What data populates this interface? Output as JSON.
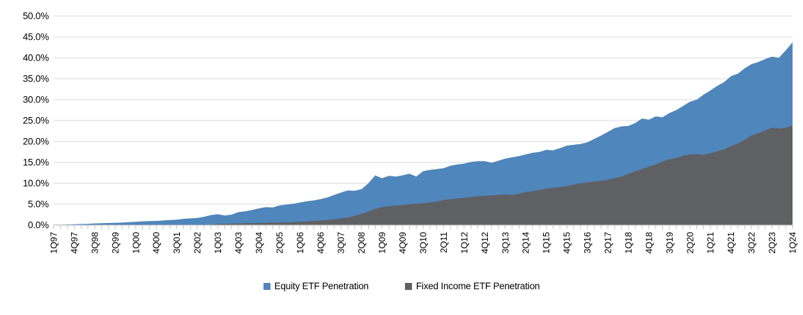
{
  "chart_data": {
    "type": "area",
    "overlay": true,
    "title": "",
    "xlabel": "",
    "ylabel": "",
    "ylim": [
      0,
      50
    ],
    "ytick_step": 5,
    "y_tick_labels": [
      "0.0%",
      "5.0%",
      "10.0%",
      "15.0%",
      "20.0%",
      "25.0%",
      "30.0%",
      "35.0%",
      "40.0%",
      "45.0%",
      "50.0%"
    ],
    "grid": "horizontal",
    "grid_color": "#D9D9D9",
    "axis_color": "#BFBFBF",
    "legend_position": "bottom-center",
    "x_tick_every": 3,
    "x_tick_labels": [
      "1Q97",
      "4Q97",
      "3Q98",
      "2Q99",
      "1Q00",
      "4Q00",
      "3Q01",
      "2Q02",
      "1Q03",
      "4Q03",
      "3Q04",
      "2Q05",
      "1Q06",
      "4Q06",
      "3Q07",
      "2Q08",
      "1Q09",
      "4Q09",
      "3Q10",
      "2Q11",
      "1Q12",
      "4Q12",
      "3Q13",
      "2Q14",
      "1Q15",
      "4Q15",
      "3Q16",
      "2Q17",
      "1Q18",
      "4Q18",
      "3Q19",
      "2Q20",
      "1Q21",
      "4Q21",
      "3Q22",
      "2Q23",
      "1Q24"
    ],
    "x_quarters": [
      "1Q97",
      "2Q97",
      "3Q97",
      "4Q97",
      "1Q98",
      "2Q98",
      "3Q98",
      "4Q98",
      "1Q99",
      "2Q99",
      "3Q99",
      "4Q99",
      "1Q00",
      "2Q00",
      "3Q00",
      "4Q00",
      "1Q01",
      "2Q01",
      "3Q01",
      "4Q01",
      "1Q02",
      "2Q02",
      "3Q02",
      "4Q02",
      "1Q03",
      "2Q03",
      "3Q03",
      "4Q03",
      "1Q04",
      "2Q04",
      "3Q04",
      "4Q04",
      "1Q05",
      "2Q05",
      "3Q05",
      "4Q05",
      "1Q06",
      "2Q06",
      "3Q06",
      "4Q06",
      "1Q07",
      "2Q07",
      "3Q07",
      "4Q07",
      "1Q08",
      "2Q08",
      "3Q08",
      "4Q08",
      "1Q09",
      "2Q09",
      "3Q09",
      "4Q09",
      "1Q10",
      "2Q10",
      "3Q10",
      "4Q10",
      "1Q11",
      "2Q11",
      "3Q11",
      "4Q11",
      "1Q12",
      "2Q12",
      "3Q12",
      "4Q12",
      "1Q13",
      "2Q13",
      "3Q13",
      "4Q13",
      "1Q14",
      "2Q14",
      "3Q14",
      "4Q14",
      "1Q15",
      "2Q15",
      "3Q15",
      "4Q15",
      "1Q16",
      "2Q16",
      "3Q16",
      "4Q16",
      "1Q17",
      "2Q17",
      "3Q17",
      "4Q17",
      "1Q18",
      "2Q18",
      "3Q18",
      "4Q18",
      "1Q19",
      "2Q19",
      "3Q19",
      "4Q19",
      "1Q20",
      "2Q20",
      "3Q20",
      "4Q20",
      "1Q21",
      "2Q21",
      "3Q21",
      "4Q21",
      "1Q22",
      "2Q22",
      "3Q22",
      "4Q22",
      "1Q23",
      "2Q23",
      "3Q23",
      "4Q23",
      "1Q24"
    ],
    "series": [
      {
        "name": "Equity ETF Penetration",
        "color": "#4F86BB",
        "values": [
          0.1,
          0.1,
          0.15,
          0.2,
          0.25,
          0.3,
          0.4,
          0.45,
          0.5,
          0.55,
          0.6,
          0.7,
          0.8,
          0.9,
          0.95,
          1.0,
          1.1,
          1.2,
          1.3,
          1.5,
          1.6,
          1.7,
          2.0,
          2.4,
          2.6,
          2.3,
          2.5,
          3.1,
          3.3,
          3.6,
          4.0,
          4.3,
          4.2,
          4.7,
          4.9,
          5.1,
          5.4,
          5.7,
          5.9,
          6.2,
          6.6,
          7.2,
          7.8,
          8.3,
          8.2,
          8.6,
          10.0,
          11.9,
          11.2,
          11.8,
          11.6,
          11.9,
          12.3,
          11.6,
          12.9,
          13.2,
          13.4,
          13.6,
          14.2,
          14.5,
          14.7,
          15.1,
          15.3,
          15.3,
          14.9,
          15.4,
          15.9,
          16.2,
          16.5,
          16.9,
          17.3,
          17.5,
          18.0,
          17.9,
          18.4,
          19.0,
          19.2,
          19.4,
          19.8,
          20.6,
          21.4,
          22.3,
          23.2,
          23.6,
          23.7,
          24.4,
          25.5,
          25.2,
          26.0,
          25.8,
          26.8,
          27.5,
          28.5,
          29.5,
          30.0,
          31.2,
          32.2,
          33.3,
          34.2,
          35.6,
          36.2,
          37.5,
          38.5,
          39.0,
          39.7,
          40.3,
          40.0,
          41.8,
          43.7
        ]
      },
      {
        "name": "Fixed Income ETF Penetration",
        "color": "#5F6063",
        "values": [
          0,
          0,
          0,
          0,
          0,
          0,
          0,
          0,
          0,
          0,
          0,
          0,
          0,
          0,
          0,
          0,
          0,
          0,
          0,
          0,
          0,
          0,
          0.05,
          0.1,
          0.3,
          0.3,
          0.35,
          0.4,
          0.45,
          0.45,
          0.5,
          0.55,
          0.6,
          0.6,
          0.65,
          0.7,
          0.8,
          0.9,
          1.0,
          1.1,
          1.2,
          1.4,
          1.6,
          1.8,
          2.2,
          2.7,
          3.2,
          3.9,
          4.3,
          4.5,
          4.7,
          4.8,
          5.0,
          5.1,
          5.2,
          5.4,
          5.6,
          6.0,
          6.2,
          6.4,
          6.5,
          6.7,
          6.9,
          7.0,
          7.1,
          7.2,
          7.3,
          7.2,
          7.5,
          7.9,
          8.1,
          8.4,
          8.7,
          8.9,
          9.1,
          9.3,
          9.7,
          10.0,
          10.2,
          10.4,
          10.6,
          10.9,
          11.2,
          11.6,
          12.3,
          12.8,
          13.4,
          14.0,
          14.5,
          15.2,
          15.7,
          16.0,
          16.6,
          16.9,
          17.0,
          16.8,
          17.2,
          17.6,
          18.1,
          18.9,
          19.5,
          20.4,
          21.4,
          22.0,
          22.6,
          23.3,
          23.1,
          23.3,
          23.8
        ]
      }
    ]
  }
}
